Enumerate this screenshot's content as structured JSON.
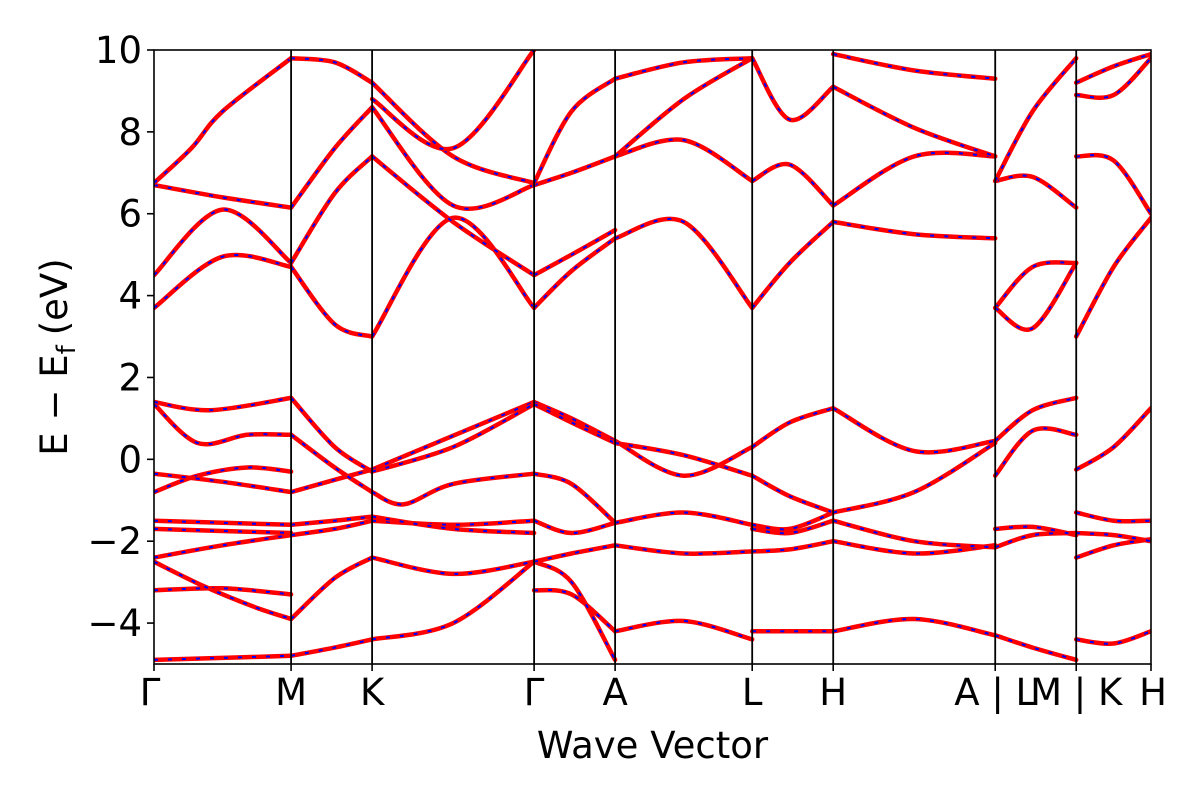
{
  "chart_data": {
    "type": "line",
    "title": "",
    "xlabel": "Wave Vector",
    "ylabel": {
      "base": "E − E",
      "subscript": "f",
      "unit": "(eV)"
    },
    "ylim": [
      -5,
      10
    ],
    "yticks": [
      -4,
      -2,
      0,
      2,
      4,
      6,
      8,
      10
    ],
    "ytick_labels": [
      "−4",
      "−2",
      "0",
      "2",
      "4",
      "6",
      "8",
      "10"
    ],
    "xlim": [
      0,
      8.0
    ],
    "kpath_x": [
      0,
      1.1,
      1.75,
      3.05,
      3.7,
      4.8,
      5.45,
      6.75,
      7.4,
      8.0
    ],
    "kpath_labels": [
      "Γ",
      "M",
      "K",
      "Γ",
      "A",
      "L",
      "H",
      "A | L",
      "M | K",
      "H"
    ],
    "breaks_after_x": [
      6.75,
      7.4
    ],
    "grid": false,
    "legend": "none",
    "series_colors": {
      "solid": "#ff0000",
      "dashed": "#0000ff"
    },
    "series": [
      {
        "x": [
          0,
          0.55,
          1.1
        ],
        "y": [
          -4.9,
          -4.85,
          -4.8
        ]
      },
      {
        "x": [
          0,
          0.55,
          1.1
        ],
        "y": [
          -3.2,
          -3.15,
          -3.3
        ]
      },
      {
        "x": [
          0,
          0.4,
          0.8,
          1.1
        ],
        "y": [
          -2.5,
          -3.1,
          -3.6,
          -3.9
        ]
      },
      {
        "x": [
          0,
          0.55,
          1.1
        ],
        "y": [
          -2.4,
          -2.1,
          -1.85
        ]
      },
      {
        "x": [
          0,
          0.55,
          1.1
        ],
        "y": [
          -1.5,
          -1.55,
          -1.6
        ]
      },
      {
        "x": [
          0,
          0.55,
          1.1
        ],
        "y": [
          -1.7,
          -1.75,
          -1.8
        ]
      },
      {
        "x": [
          0,
          0.35,
          0.75,
          1.1
        ],
        "y": [
          -0.8,
          -0.4,
          -0.2,
          -0.3
        ]
      },
      {
        "x": [
          0,
          0.55,
          1.1
        ],
        "y": [
          -0.35,
          -0.55,
          -0.8
        ]
      },
      {
        "x": [
          0,
          0.35,
          0.75,
          1.1
        ],
        "y": [
          1.35,
          0.4,
          0.6,
          0.6
        ]
      },
      {
        "x": [
          0,
          0.45,
          1.1
        ],
        "y": [
          1.4,
          1.2,
          1.5
        ]
      },
      {
        "x": [
          0,
          0.55,
          1.1
        ],
        "y": [
          3.7,
          4.95,
          4.7
        ]
      },
      {
        "x": [
          0,
          0.55,
          1.1
        ],
        "y": [
          4.5,
          6.1,
          4.8
        ]
      },
      {
        "x": [
          0,
          0.55,
          1.1
        ],
        "y": [
          6.7,
          6.4,
          6.15
        ]
      },
      {
        "x": [
          0,
          0.3,
          0.55,
          1.1
        ],
        "y": [
          6.75,
          7.6,
          8.5,
          9.8
        ]
      },
      {
        "x": [
          1.1,
          1.45,
          1.75
        ],
        "y": [
          -4.8,
          -4.6,
          -4.4
        ]
      },
      {
        "x": [
          1.1,
          1.45,
          1.75
        ],
        "y": [
          -3.9,
          -2.9,
          -2.4
        ]
      },
      {
        "x": [
          1.1,
          1.45,
          1.75
        ],
        "y": [
          -1.85,
          -1.7,
          -1.5
        ]
      },
      {
        "x": [
          1.1,
          1.45,
          1.75
        ],
        "y": [
          -1.6,
          -1.5,
          -1.4
        ]
      },
      {
        "x": [
          1.1,
          1.45,
          1.75
        ],
        "y": [
          -0.8,
          -0.5,
          -0.25
        ]
      },
      {
        "x": [
          1.1,
          1.45,
          1.75
        ],
        "y": [
          0.6,
          -0.2,
          -0.8
        ]
      },
      {
        "x": [
          1.1,
          1.45,
          1.75
        ],
        "y": [
          1.5,
          0.3,
          -0.3
        ]
      },
      {
        "x": [
          1.1,
          1.45,
          1.75
        ],
        "y": [
          4.7,
          3.3,
          3.0
        ]
      },
      {
        "x": [
          1.1,
          1.45,
          1.75
        ],
        "y": [
          4.8,
          6.5,
          7.4
        ]
      },
      {
        "x": [
          1.1,
          1.45,
          1.75
        ],
        "y": [
          6.15,
          7.6,
          8.6
        ]
      },
      {
        "x": [
          1.1,
          1.45,
          1.75
        ],
        "y": [
          9.8,
          9.7,
          9.2
        ]
      },
      {
        "x": [
          1.75,
          2.4,
          3.05
        ],
        "y": [
          -4.4,
          -4.0,
          -2.5
        ]
      },
      {
        "x": [
          1.75,
          2.4,
          3.05
        ],
        "y": [
          -2.4,
          -2.8,
          -2.5
        ]
      },
      {
        "x": [
          1.75,
          2.4,
          3.05
        ],
        "y": [
          -1.5,
          -1.6,
          -1.5
        ]
      },
      {
        "x": [
          1.75,
          2.4,
          3.05
        ],
        "y": [
          -1.4,
          -1.7,
          -1.8
        ]
      },
      {
        "x": [
          1.75,
          2.0,
          2.4,
          3.05
        ],
        "y": [
          -0.8,
          -1.1,
          -0.6,
          -0.35
        ]
      },
      {
        "x": [
          1.75,
          2.3,
          3.05
        ],
        "y": [
          -0.25,
          0.45,
          1.4
        ]
      },
      {
        "x": [
          1.75,
          2.4,
          3.05
        ],
        "y": [
          -0.3,
          0.3,
          1.35
        ]
      },
      {
        "x": [
          1.75,
          2.4,
          3.05
        ],
        "y": [
          3.0,
          5.9,
          3.7
        ]
      },
      {
        "x": [
          1.75,
          2.4,
          3.05
        ],
        "y": [
          7.4,
          5.8,
          4.5
        ]
      },
      {
        "x": [
          1.75,
          2.4,
          3.05
        ],
        "y": [
          8.6,
          6.2,
          6.7
        ]
      },
      {
        "x": [
          1.75,
          2.4,
          3.05
        ],
        "y": [
          9.2,
          7.4,
          6.75
        ]
      },
      {
        "x": [
          1.75,
          2.4,
          3.05
        ],
        "y": [
          8.8,
          7.6,
          10.0
        ]
      },
      {
        "x": [
          3.05,
          3.35,
          3.7
        ],
        "y": [
          -3.2,
          -3.3,
          -4.2
        ]
      },
      {
        "x": [
          3.05,
          3.35,
          3.7
        ],
        "y": [
          -2.5,
          -3.0,
          -4.9
        ]
      },
      {
        "x": [
          3.05,
          3.35,
          3.7
        ],
        "y": [
          -2.5,
          -2.3,
          -2.1
        ]
      },
      {
        "x": [
          3.05,
          3.35,
          3.7
        ],
        "y": [
          -1.5,
          -1.8,
          -1.55
        ]
      },
      {
        "x": [
          3.05,
          3.35,
          3.7
        ],
        "y": [
          -0.35,
          -0.6,
          -1.55
        ]
      },
      {
        "x": [
          3.05,
          3.35,
          3.7
        ],
        "y": [
          1.4,
          1.0,
          0.45
        ]
      },
      {
        "x": [
          3.05,
          3.35,
          3.7
        ],
        "y": [
          1.35,
          0.9,
          0.4
        ]
      },
      {
        "x": [
          3.05,
          3.35,
          3.7
        ],
        "y": [
          3.7,
          4.6,
          5.4
        ]
      },
      {
        "x": [
          3.05,
          3.35,
          3.7
        ],
        "y": [
          4.5,
          5.0,
          5.6
        ]
      },
      {
        "x": [
          3.05,
          3.35,
          3.7
        ],
        "y": [
          6.7,
          7.0,
          7.4
        ]
      },
      {
        "x": [
          3.05,
          3.35,
          3.7
        ],
        "y": [
          6.75,
          8.5,
          9.3
        ]
      },
      {
        "x": [
          3.7,
          4.25,
          4.8
        ],
        "y": [
          -4.2,
          -3.95,
          -4.4
        ]
      },
      {
        "x": [
          3.7,
          4.25,
          4.8
        ],
        "y": [
          -2.1,
          -2.3,
          -2.25
        ]
      },
      {
        "x": [
          3.7,
          4.25,
          4.8
        ],
        "y": [
          -1.55,
          -1.3,
          -1.6
        ]
      },
      {
        "x": [
          3.7,
          4.25,
          4.8
        ],
        "y": [
          0.45,
          -0.4,
          0.3
        ]
      },
      {
        "x": [
          3.7,
          4.25,
          4.8
        ],
        "y": [
          0.4,
          0.1,
          -0.4
        ]
      },
      {
        "x": [
          3.7,
          4.25,
          4.8
        ],
        "y": [
          5.4,
          5.8,
          3.7
        ]
      },
      {
        "x": [
          3.7,
          4.25,
          4.8
        ],
        "y": [
          7.4,
          7.8,
          6.8
        ]
      },
      {
        "x": [
          3.7,
          4.25,
          4.8
        ],
        "y": [
          7.4,
          8.8,
          9.8
        ]
      },
      {
        "x": [
          3.7,
          4.25,
          4.8
        ],
        "y": [
          9.3,
          9.7,
          9.8
        ]
      },
      {
        "x": [
          4.8,
          5.1,
          5.45
        ],
        "y": [
          -4.2,
          -4.2,
          -4.2
        ]
      },
      {
        "x": [
          4.8,
          5.1,
          5.45
        ],
        "y": [
          -2.25,
          -2.2,
          -2.0
        ]
      },
      {
        "x": [
          4.8,
          5.1,
          5.45
        ],
        "y": [
          -1.7,
          -1.8,
          -1.5
        ]
      },
      {
        "x": [
          4.8,
          5.1,
          5.45
        ],
        "y": [
          -1.6,
          -1.7,
          -1.3
        ]
      },
      {
        "x": [
          4.8,
          5.1,
          5.45
        ],
        "y": [
          0.3,
          0.9,
          1.25
        ]
      },
      {
        "x": [
          4.8,
          5.1,
          5.45
        ],
        "y": [
          -0.4,
          -0.9,
          -1.3
        ]
      },
      {
        "x": [
          4.8,
          5.1,
          5.45
        ],
        "y": [
          3.7,
          4.8,
          5.8
        ]
      },
      {
        "x": [
          4.8,
          5.1,
          5.45
        ],
        "y": [
          6.8,
          7.2,
          6.2
        ]
      },
      {
        "x": [
          4.8,
          5.1,
          5.45
        ],
        "y": [
          9.8,
          8.3,
          9.1
        ]
      },
      {
        "x": [
          5.45,
          6.1,
          6.75
        ],
        "y": [
          -4.2,
          -3.9,
          -4.3
        ]
      },
      {
        "x": [
          5.45,
          6.1,
          6.75
        ],
        "y": [
          -2.0,
          -2.3,
          -2.1
        ]
      },
      {
        "x": [
          5.45,
          6.1,
          6.75
        ],
        "y": [
          -1.5,
          -2.0,
          -2.15
        ]
      },
      {
        "x": [
          5.45,
          6.1,
          6.75
        ],
        "y": [
          -1.3,
          -0.8,
          0.4
        ]
      },
      {
        "x": [
          5.45,
          6.1,
          6.75
        ],
        "y": [
          1.25,
          0.2,
          0.45
        ]
      },
      {
        "x": [
          5.45,
          6.1,
          6.75
        ],
        "y": [
          5.8,
          5.5,
          5.4
        ]
      },
      {
        "x": [
          5.45,
          6.1,
          6.75
        ],
        "y": [
          6.2,
          7.4,
          7.4
        ]
      },
      {
        "x": [
          5.45,
          6.1,
          6.75
        ],
        "y": [
          9.1,
          8.1,
          7.4
        ]
      },
      {
        "x": [
          5.45,
          6.1,
          6.75
        ],
        "y": [
          9.9,
          9.5,
          9.3
        ]
      },
      {
        "x": [
          6.75,
          7.05,
          7.4
        ],
        "y": [
          -4.3,
          -4.6,
          -4.9
        ]
      },
      {
        "x": [
          6.75,
          7.05,
          7.4
        ],
        "y": [
          -2.15,
          -1.85,
          -1.8
        ]
      },
      {
        "x": [
          6.75,
          7.05,
          7.4
        ],
        "y": [
          -1.7,
          -1.65,
          -1.85
        ]
      },
      {
        "x": [
          6.75,
          7.05,
          7.4
        ],
        "y": [
          -0.4,
          0.7,
          0.6
        ]
      },
      {
        "x": [
          6.75,
          7.05,
          7.4
        ],
        "y": [
          0.45,
          1.2,
          1.5
        ]
      },
      {
        "x": [
          6.75,
          7.05,
          7.4
        ],
        "y": [
          3.7,
          4.7,
          4.8
        ]
      },
      {
        "x": [
          6.75,
          7.05,
          7.4
        ],
        "y": [
          3.7,
          3.2,
          4.8
        ]
      },
      {
        "x": [
          6.75,
          7.05,
          7.4
        ],
        "y": [
          6.8,
          6.9,
          6.15
        ]
      },
      {
        "x": [
          6.75,
          7.05,
          7.4
        ],
        "y": [
          6.8,
          8.5,
          9.8
        ]
      },
      {
        "x": [
          7.4,
          7.7,
          8.0
        ],
        "y": [
          -4.4,
          -4.5,
          -4.2
        ]
      },
      {
        "x": [
          7.4,
          7.7,
          8.0
        ],
        "y": [
          -2.4,
          -2.1,
          -1.95
        ]
      },
      {
        "x": [
          7.4,
          7.7,
          8.0
        ],
        "y": [
          -1.8,
          -1.85,
          -2.0
        ]
      },
      {
        "x": [
          7.4,
          7.7,
          8.0
        ],
        "y": [
          -1.3,
          -1.5,
          -1.5
        ]
      },
      {
        "x": [
          7.4,
          7.7,
          8.0
        ],
        "y": [
          -0.25,
          0.3,
          1.25
        ]
      },
      {
        "x": [
          7.4,
          7.7,
          8.0
        ],
        "y": [
          3.0,
          4.7,
          5.9
        ]
      },
      {
        "x": [
          7.4,
          7.7,
          8.0
        ],
        "y": [
          7.4,
          7.3,
          6.0
        ]
      },
      {
        "x": [
          7.4,
          7.7,
          8.0
        ],
        "y": [
          8.9,
          8.9,
          9.8
        ]
      },
      {
        "x": [
          7.4,
          7.7,
          8.0
        ],
        "y": [
          9.2,
          9.6,
          9.9
        ]
      }
    ]
  }
}
